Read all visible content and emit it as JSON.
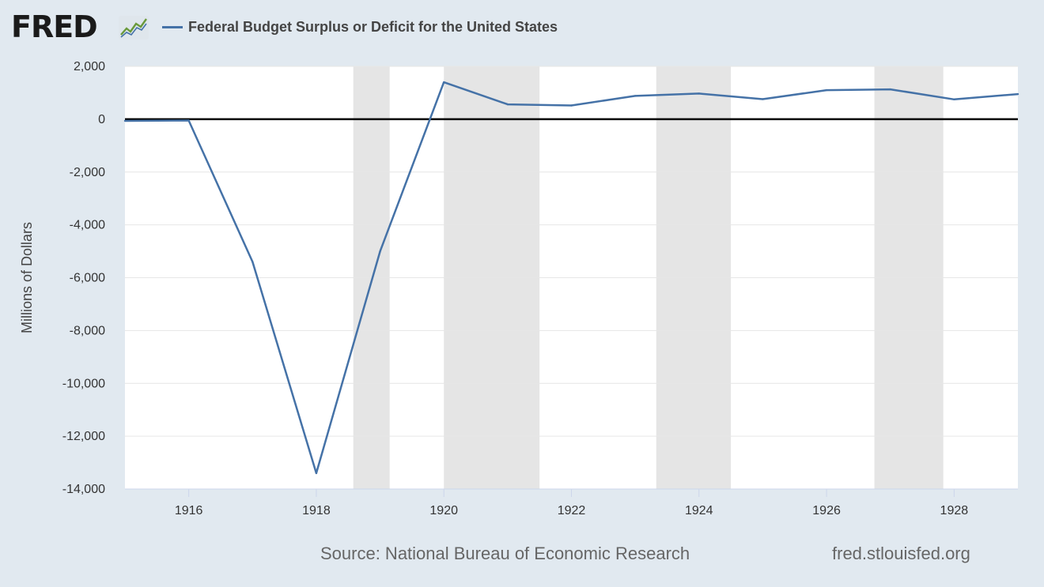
{
  "header": {
    "logo_text": "FRED",
    "logo_icon": "line-chart-icon"
  },
  "chart_data": {
    "type": "line",
    "series": [
      {
        "name": "Federal Budget Surplus or Deficit for the United States",
        "color": "#4572a7",
        "x": [
          1915,
          1916,
          1917,
          1918,
          1919,
          1920,
          1921,
          1922,
          1923,
          1924,
          1925,
          1926,
          1927,
          1928,
          1929
        ],
        "values": [
          -63,
          -48,
          -5400,
          -13400,
          -5000,
          1400,
          560,
          520,
          880,
          970,
          760,
          1100,
          1130,
          750,
          950
        ]
      }
    ],
    "xlabel": "",
    "ylabel": "Millions of Dollars",
    "xlim": [
      1915,
      1929
    ],
    "ylim": [
      -14000,
      2000
    ],
    "x_ticks": [
      "1916",
      "1918",
      "1920",
      "1922",
      "1924",
      "1926",
      "1928"
    ],
    "y_ticks": [
      "2,000",
      "0",
      "-2,000",
      "-4,000",
      "-6,000",
      "-8,000",
      "-10,000",
      "-12,000",
      "-14,000"
    ],
    "recessions": [
      [
        1918.58,
        1919.15
      ],
      [
        1920.0,
        1921.5
      ],
      [
        1923.33,
        1924.5
      ],
      [
        1926.75,
        1927.83
      ]
    ],
    "grid": true,
    "zero_line": true,
    "legend_position": "top",
    "plot_background": "#ffffff",
    "recession_color": "#e5e5e5"
  },
  "footer": {
    "source": "Source: National Bureau of Economic Research",
    "url": "fred.stlouisfed.org"
  }
}
